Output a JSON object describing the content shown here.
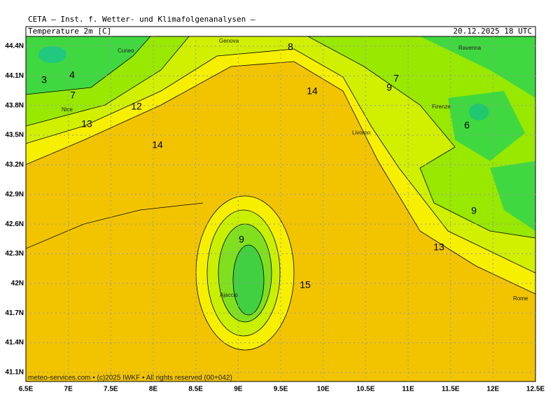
{
  "header": {
    "title": "CETA — Inst. f. Wetter- und Klimafolgenanalysen —",
    "variable": "Temperature 2m [C]",
    "valid_time": "20.12.2025 18 UTC"
  },
  "footer": "meteo-services.com • (c)2025 IWKF • All rights reserved (00+042)",
  "axes": {
    "x": [
      "6.5E",
      "7E",
      "7.5E",
      "8E",
      "8.5E",
      "9E",
      "9.5E",
      "10E",
      "10.5E",
      "11E",
      "11.5E",
      "12E",
      "12.5E"
    ],
    "y": [
      "44.4N",
      "44.1N",
      "43.8N",
      "43.5N",
      "43.2N",
      "42.9N",
      "42.6N",
      "42.3N",
      "42N",
      "41.7N",
      "41.4N",
      "41.1N"
    ]
  },
  "cities": [
    "Cuneo",
    "Genova",
    "Ravenna",
    "Nice",
    "Firenze",
    "Livorno",
    "Ajaccio",
    "Rome"
  ],
  "contour_labels": [
    3,
    4,
    7,
    12,
    13,
    14,
    8,
    14,
    7,
    9,
    6,
    9,
    13,
    9,
    15
  ]
}
